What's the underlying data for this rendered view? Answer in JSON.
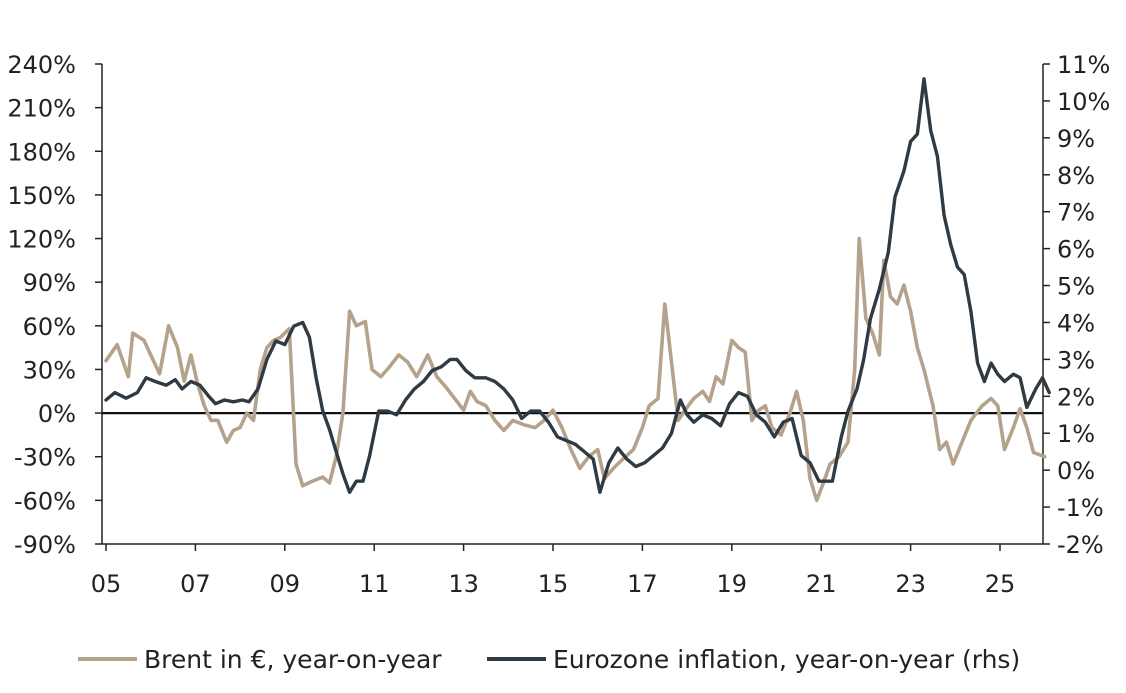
{
  "chart_data": {
    "type": "line",
    "title": "",
    "xlabel": "",
    "ylabel": "",
    "x_ticks": [
      "05",
      "07",
      "09",
      "11",
      "13",
      "15",
      "17",
      "19",
      "21",
      "23",
      "25"
    ],
    "y_left": {
      "ylim": [
        -90,
        240
      ],
      "ticks": [
        -90,
        -60,
        -30,
        0,
        30,
        60,
        90,
        120,
        150,
        180,
        210,
        240
      ],
      "tick_labels": [
        "-90%",
        "-60%",
        "-30%",
        "0%",
        "30%",
        "60%",
        "90%",
        "120%",
        "150%",
        "180%",
        "210%",
        "240%"
      ]
    },
    "y_right": {
      "ylim": [
        -2,
        11
      ],
      "ticks": [
        -2,
        -1,
        0,
        1,
        2,
        3,
        4,
        5,
        6,
        7,
        8,
        9,
        10,
        11
      ],
      "tick_labels": [
        "-2%",
        "-1%",
        "0%",
        "1%",
        "2%",
        "3%",
        "4%",
        "5%",
        "6%",
        "7%",
        "8%",
        "9%",
        "10%",
        "11%"
      ]
    },
    "zero_line": true,
    "grid": false,
    "legend_position": "bottom",
    "series": [
      {
        "name": "Brent in €, year-on-year",
        "axis": "left",
        "color": "#b5a28c",
        "points": [
          [
            2005.0,
            36
          ],
          [
            2005.25,
            47
          ],
          [
            2005.5,
            25
          ],
          [
            2005.6,
            55
          ],
          [
            2005.85,
            50
          ],
          [
            2006.0,
            40
          ],
          [
            2006.2,
            27
          ],
          [
            2006.4,
            60
          ],
          [
            2006.6,
            45
          ],
          [
            2006.75,
            22
          ],
          [
            2006.9,
            40
          ],
          [
            2007.05,
            20
          ],
          [
            2007.2,
            5
          ],
          [
            2007.35,
            -5
          ],
          [
            2007.5,
            -5
          ],
          [
            2007.7,
            -20
          ],
          [
            2007.85,
            -12
          ],
          [
            2008.0,
            -10
          ],
          [
            2008.15,
            0
          ],
          [
            2008.3,
            -5
          ],
          [
            2008.45,
            30
          ],
          [
            2008.6,
            45
          ],
          [
            2008.75,
            50
          ],
          [
            2008.9,
            52
          ],
          [
            2009.1,
            58
          ],
          [
            2009.25,
            -35
          ],
          [
            2009.4,
            -50
          ],
          [
            2009.6,
            -47
          ],
          [
            2009.85,
            -44
          ],
          [
            2010.0,
            -48
          ],
          [
            2010.15,
            -30
          ],
          [
            2010.3,
            0
          ],
          [
            2010.45,
            70
          ],
          [
            2010.6,
            60
          ],
          [
            2010.8,
            63
          ],
          [
            2010.95,
            30
          ],
          [
            2011.15,
            25
          ],
          [
            2011.35,
            32
          ],
          [
            2011.55,
            40
          ],
          [
            2011.75,
            35
          ],
          [
            2011.95,
            25
          ],
          [
            2012.2,
            40
          ],
          [
            2012.4,
            25
          ],
          [
            2012.6,
            18
          ],
          [
            2012.8,
            10
          ],
          [
            2013.0,
            2
          ],
          [
            2013.15,
            15
          ],
          [
            2013.3,
            8
          ],
          [
            2013.5,
            5
          ],
          [
            2013.7,
            -5
          ],
          [
            2013.9,
            -12
          ],
          [
            2014.1,
            -5
          ],
          [
            2014.35,
            -8
          ],
          [
            2014.6,
            -10
          ],
          [
            2014.8,
            -5
          ],
          [
            2015.0,
            2
          ],
          [
            2015.2,
            -10
          ],
          [
            2015.4,
            -25
          ],
          [
            2015.6,
            -38
          ],
          [
            2015.8,
            -30
          ],
          [
            2016.0,
            -25
          ],
          [
            2016.15,
            -45
          ],
          [
            2016.35,
            -38
          ],
          [
            2016.55,
            -32
          ],
          [
            2016.8,
            -25
          ],
          [
            2017.0,
            -10
          ],
          [
            2017.15,
            5
          ],
          [
            2017.35,
            10
          ],
          [
            2017.5,
            75
          ],
          [
            2017.65,
            35
          ],
          [
            2017.8,
            -5
          ],
          [
            2017.95,
            2
          ],
          [
            2018.15,
            10
          ],
          [
            2018.35,
            15
          ],
          [
            2018.5,
            8
          ],
          [
            2018.65,
            25
          ],
          [
            2018.8,
            20
          ],
          [
            2019.0,
            50
          ],
          [
            2019.15,
            45
          ],
          [
            2019.3,
            42
          ],
          [
            2019.45,
            -5
          ],
          [
            2019.6,
            2
          ],
          [
            2019.75,
            5
          ],
          [
            2019.9,
            -10
          ],
          [
            2020.1,
            -15
          ],
          [
            2020.3,
            0
          ],
          [
            2020.45,
            15
          ],
          [
            2020.6,
            -5
          ],
          [
            2020.75,
            -45
          ],
          [
            2020.9,
            -60
          ],
          [
            2021.05,
            -48
          ],
          [
            2021.2,
            -35
          ],
          [
            2021.4,
            -30
          ],
          [
            2021.6,
            -20
          ],
          [
            2021.75,
            30
          ],
          [
            2021.85,
            120
          ],
          [
            2022.0,
            65
          ],
          [
            2022.15,
            55
          ],
          [
            2022.3,
            40
          ],
          [
            2022.4,
            105
          ],
          [
            2022.55,
            80
          ],
          [
            2022.7,
            75
          ],
          [
            2022.85,
            88
          ],
          [
            2023.0,
            70
          ],
          [
            2023.15,
            45
          ],
          [
            2023.3,
            30
          ],
          [
            2023.5,
            5
          ],
          [
            2023.65,
            -25
          ],
          [
            2023.8,
            -20
          ],
          [
            2023.95,
            -35
          ],
          [
            2024.15,
            -20
          ],
          [
            2024.35,
            -5
          ],
          [
            2024.6,
            5
          ],
          [
            2024.8,
            10
          ],
          [
            2024.95,
            5
          ],
          [
            2025.1,
            -25
          ],
          [
            2025.3,
            -10
          ],
          [
            2025.45,
            3
          ],
          [
            2025.6,
            -10
          ],
          [
            2025.75,
            -27
          ],
          [
            2026.0,
            -30
          ]
        ]
      },
      {
        "name": "Eurozone inflation, year-on-year (rhs)",
        "axis": "right",
        "color": "#2f3a42",
        "points": [
          [
            2005.0,
            1.9
          ],
          [
            2005.2,
            2.1
          ],
          [
            2005.45,
            1.95
          ],
          [
            2005.7,
            2.1
          ],
          [
            2005.9,
            2.5
          ],
          [
            2006.1,
            2.4
          ],
          [
            2006.35,
            2.3
          ],
          [
            2006.55,
            2.45
          ],
          [
            2006.7,
            2.2
          ],
          [
            2006.9,
            2.4
          ],
          [
            2007.1,
            2.3
          ],
          [
            2007.3,
            2.0
          ],
          [
            2007.45,
            1.8
          ],
          [
            2007.65,
            1.9
          ],
          [
            2007.85,
            1.85
          ],
          [
            2008.05,
            1.9
          ],
          [
            2008.2,
            1.85
          ],
          [
            2008.4,
            2.2
          ],
          [
            2008.6,
            3.0
          ],
          [
            2008.8,
            3.5
          ],
          [
            2009.0,
            3.4
          ],
          [
            2009.2,
            3.9
          ],
          [
            2009.4,
            4.0
          ],
          [
            2009.55,
            3.6
          ],
          [
            2009.7,
            2.5
          ],
          [
            2009.85,
            1.6
          ],
          [
            2010.0,
            1.1
          ],
          [
            2010.15,
            0.5
          ],
          [
            2010.3,
            -0.1
          ],
          [
            2010.45,
            -0.6
          ],
          [
            2010.6,
            -0.3
          ],
          [
            2010.75,
            -0.3
          ],
          [
            2010.9,
            0.4
          ],
          [
            2011.1,
            1.6
          ],
          [
            2011.3,
            1.6
          ],
          [
            2011.5,
            1.5
          ],
          [
            2011.7,
            1.9
          ],
          [
            2011.9,
            2.2
          ],
          [
            2012.1,
            2.4
          ],
          [
            2012.3,
            2.7
          ],
          [
            2012.5,
            2.8
          ],
          [
            2012.7,
            3.0
          ],
          [
            2012.85,
            3.0
          ],
          [
            2013.05,
            2.7
          ],
          [
            2013.25,
            2.5
          ],
          [
            2013.5,
            2.5
          ],
          [
            2013.7,
            2.4
          ],
          [
            2013.9,
            2.2
          ],
          [
            2014.1,
            1.9
          ],
          [
            2014.3,
            1.4
          ],
          [
            2014.5,
            1.6
          ],
          [
            2014.7,
            1.6
          ],
          [
            2014.9,
            1.3
          ],
          [
            2015.1,
            0.9
          ],
          [
            2015.3,
            0.8
          ],
          [
            2015.5,
            0.7
          ],
          [
            2015.7,
            0.5
          ],
          [
            2015.9,
            0.3
          ],
          [
            2016.05,
            -0.6
          ],
          [
            2016.25,
            0.2
          ],
          [
            2016.45,
            0.6
          ],
          [
            2016.65,
            0.3
          ],
          [
            2016.85,
            0.1
          ],
          [
            2017.05,
            0.2
          ],
          [
            2017.25,
            0.4
          ],
          [
            2017.45,
            0.6
          ],
          [
            2017.65,
            1.0
          ],
          [
            2017.85,
            1.9
          ],
          [
            2018.0,
            1.5
          ],
          [
            2018.15,
            1.3
          ],
          [
            2018.35,
            1.5
          ],
          [
            2018.55,
            1.4
          ],
          [
            2018.75,
            1.2
          ],
          [
            2018.95,
            1.8
          ],
          [
            2019.15,
            2.1
          ],
          [
            2019.35,
            2.0
          ],
          [
            2019.55,
            1.5
          ],
          [
            2019.75,
            1.3
          ],
          [
            2019.95,
            0.9
          ],
          [
            2020.15,
            1.3
          ],
          [
            2020.35,
            1.4
          ],
          [
            2020.55,
            0.4
          ],
          [
            2020.75,
            0.2
          ],
          [
            2020.95,
            -0.3
          ],
          [
            2021.1,
            -0.3
          ],
          [
            2021.25,
            -0.3
          ],
          [
            2021.45,
            0.9
          ],
          [
            2021.6,
            1.6
          ],
          [
            2021.8,
            2.2
          ],
          [
            2021.95,
            3.0
          ],
          [
            2022.1,
            4.1
          ],
          [
            2022.3,
            4.9
          ],
          [
            2022.5,
            5.9
          ],
          [
            2022.65,
            7.4
          ],
          [
            2022.85,
            8.1
          ],
          [
            2023.0,
            8.9
          ],
          [
            2023.15,
            9.1
          ],
          [
            2023.3,
            10.6
          ],
          [
            2023.45,
            9.2
          ],
          [
            2023.6,
            8.5
          ],
          [
            2023.75,
            6.9
          ],
          [
            2023.9,
            6.1
          ],
          [
            2024.05,
            5.5
          ],
          [
            2024.2,
            5.3
          ],
          [
            2024.35,
            4.3
          ],
          [
            2024.5,
            2.9
          ],
          [
            2024.65,
            2.4
          ],
          [
            2024.8,
            2.9
          ],
          [
            2024.95,
            2.6
          ],
          [
            2025.1,
            2.4
          ],
          [
            2025.3,
            2.6
          ],
          [
            2025.45,
            2.5
          ],
          [
            2025.6,
            1.7
          ],
          [
            2025.8,
            2.2
          ],
          [
            2025.95,
            2.5
          ],
          [
            2026.1,
            2.1
          ]
        ]
      }
    ]
  }
}
